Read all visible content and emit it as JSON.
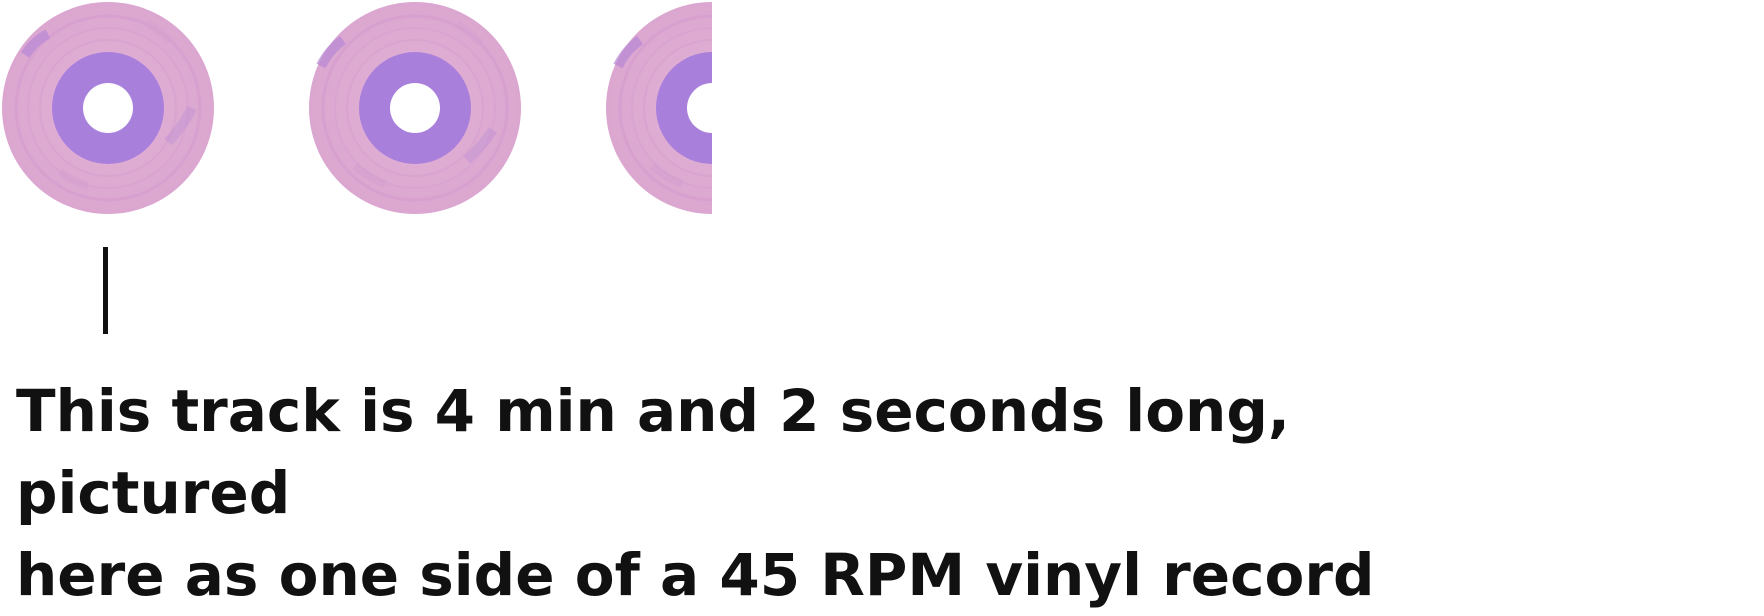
{
  "records": {
    "count_shown": 2.5,
    "colors": {
      "outer": "#dca8d2",
      "label": "#a97fdc",
      "hole": "#ffffff",
      "groove": "#c795c9"
    },
    "icon": "vinyl-record-icon"
  },
  "caption": {
    "line1": "This track is 4 min and 2 seconds long, pictured",
    "line2": "here as one side of a 45 RPM vinyl record"
  }
}
